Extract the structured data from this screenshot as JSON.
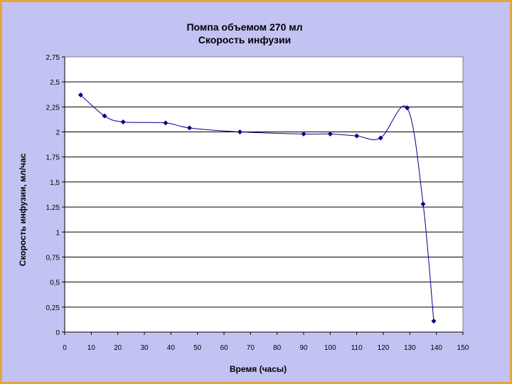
{
  "chart_data": {
    "type": "line",
    "title": "Помпа объемом 270 мл",
    "subtitle": "Скорость инфузии",
    "xlabel": "Время (часы)",
    "ylabel": "Скорость инфузии, мл/час",
    "xlim": [
      0,
      150
    ],
    "ylim": [
      0,
      2.75
    ],
    "x_ticks": [
      "0",
      "10",
      "20",
      "30",
      "40",
      "50",
      "60",
      "70",
      "80",
      "90",
      "100",
      "110",
      "120",
      "130",
      "140",
      "150"
    ],
    "y_ticks": [
      "0",
      "0,25",
      "0,5",
      "0,75",
      "1",
      "1,25",
      "1,5",
      "1,75",
      "2",
      "2,25",
      "2,5",
      "2,75"
    ],
    "grid": "horizontal",
    "line_color": "#00008b",
    "marker_color": "#00008b",
    "plot_background": "#ffffff",
    "series": [
      {
        "x": [
          6,
          15,
          22,
          38,
          47,
          66,
          90,
          100,
          110,
          119,
          129,
          135,
          139
        ],
        "y": [
          2.37,
          2.16,
          2.1,
          2.09,
          2.04,
          2.0,
          1.98,
          1.98,
          1.96,
          1.94,
          2.24,
          1.28,
          0.11
        ]
      }
    ]
  }
}
